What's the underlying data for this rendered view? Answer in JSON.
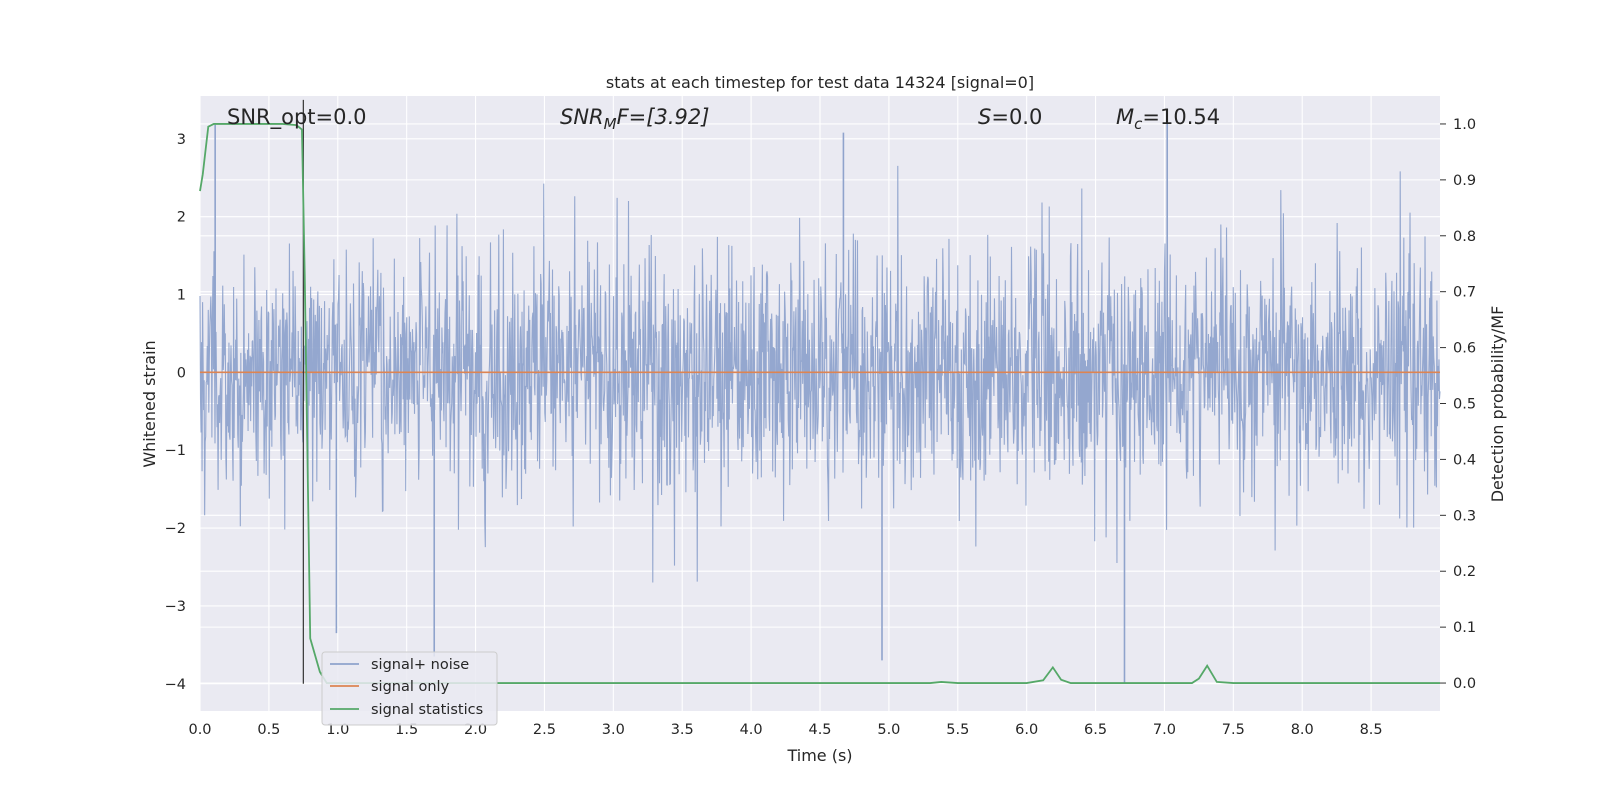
{
  "chart_data": {
    "type": "line",
    "title": "stats at each timestep for test data 14324 [signal=0]",
    "xlabel": "Time (s)",
    "ylabel_left": "Whitened strain",
    "ylabel_right": "Detection probability/MF",
    "xlim": [
      0.0,
      9.0
    ],
    "ylim_left": [
      -4.35,
      3.55
    ],
    "ylim_right": [
      -0.05,
      1.05
    ],
    "xticks": [
      "0.0",
      "0.5",
      "1.0",
      "1.5",
      "2.0",
      "2.5",
      "3.0",
      "3.5",
      "4.0",
      "4.5",
      "5.0",
      "5.5",
      "6.0",
      "6.5",
      "7.0",
      "7.5",
      "8.0",
      "8.5"
    ],
    "yticks_left": [
      "3",
      "2",
      "1",
      "0",
      "−1",
      "−2",
      "−3",
      "−4"
    ],
    "yticks_right": [
      "1.0",
      "0.9",
      "0.8",
      "0.7",
      "0.6",
      "0.5",
      "0.4",
      "0.3",
      "0.2",
      "0.1",
      "0.0"
    ],
    "grid": true,
    "legend_position": "lower-left",
    "annotations": {
      "snr_opt": "SNR_opt=0.0",
      "snr_mf_main": "SNR",
      "snr_mf_sub": "M",
      "snr_mf_rest": "F=[3.92]",
      "s_main": "S",
      "s_rest": "=0.0",
      "mc_main": "M",
      "mc_sub": "c",
      "mc_rest": "=10.54"
    },
    "vertical_marker_x": 0.75,
    "series": [
      {
        "name": "signal+ noise",
        "axis": "left",
        "color": "#8fa3cc",
        "description_values": "whitened noise, roughly Gaussian, amplitude mostly within [-2.5, 3.1]",
        "peaks": [
          {
            "x": 0.11,
            "y": 3.18
          },
          {
            "x": 4.67,
            "y": 3.08
          },
          {
            "x": 7.02,
            "y": 3.22
          },
          {
            "x": 6.71,
            "y": -4.0
          },
          {
            "x": 4.95,
            "y": -3.7
          },
          {
            "x": 1.7,
            "y": -3.65
          },
          {
            "x": 0.99,
            "y": -3.35
          }
        ]
      },
      {
        "name": "signal only",
        "axis": "left",
        "color": "#dd8452",
        "x": [
          0.0,
          9.0
        ],
        "y": [
          0.0,
          0.0
        ]
      },
      {
        "name": "signal statistics",
        "axis": "right",
        "color": "#55a868",
        "x": [
          0.0,
          0.02,
          0.06,
          0.1,
          0.2,
          0.4,
          0.6,
          0.7,
          0.74,
          0.76,
          0.8,
          0.87,
          0.92,
          1.0,
          2.0,
          3.0,
          4.0,
          5.0,
          5.3,
          5.38,
          5.5,
          6.0,
          6.12,
          6.19,
          6.25,
          6.32,
          6.5,
          7.0,
          7.2,
          7.25,
          7.31,
          7.38,
          7.5,
          8.0,
          9.0
        ],
        "y": [
          0.88,
          0.91,
          0.995,
          1.0,
          1.0,
          1.0,
          1.0,
          0.998,
          0.99,
          0.73,
          0.08,
          0.02,
          0.0,
          0.0,
          0.0,
          0.0,
          0.0,
          0.0,
          0.0,
          0.002,
          0.0,
          0.0,
          0.005,
          0.028,
          0.006,
          0.0,
          0.0,
          0.0,
          0.0,
          0.008,
          0.031,
          0.002,
          0.0,
          0.0,
          0.0
        ]
      }
    ]
  }
}
